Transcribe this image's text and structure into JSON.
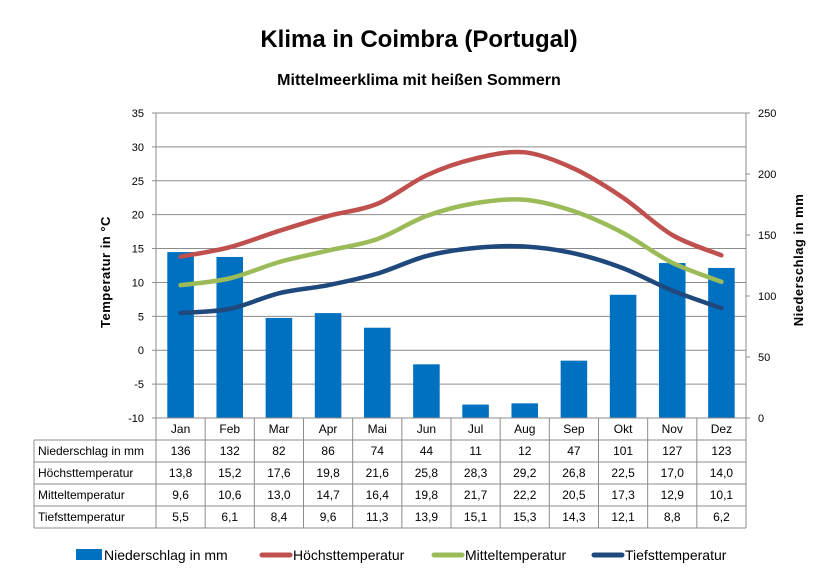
{
  "title": "Klima in Coimbra (Portugal)",
  "subtitle": "Mittelmeerklima mit heißen Sommern",
  "chart_data": {
    "type": "bar+line",
    "categories": [
      "Jan",
      "Feb",
      "Mar",
      "Apr",
      "Mai",
      "Jun",
      "Jul",
      "Aug",
      "Sep",
      "Okt",
      "Nov",
      "Dez"
    ],
    "ylabel": "Temperatur  in  °C",
    "y2label": "Niederschlag  in  mm",
    "ylim": [
      -10,
      35
    ],
    "yticks": [
      "35",
      "30",
      "25",
      "20",
      "15",
      "10",
      "5",
      "0",
      "-5",
      "-10"
    ],
    "y2lim": [
      0,
      250
    ],
    "y2ticks": [
      "250",
      "200",
      "150",
      "100",
      "50",
      "0"
    ],
    "grid": true,
    "series": [
      {
        "name": "Niederschlag in mm",
        "type": "bar",
        "axis": "right",
        "color": "#0070C0",
        "values": [
          136,
          132,
          82,
          86,
          74,
          44,
          11,
          12,
          47,
          101,
          127,
          123
        ],
        "labels": [
          "136",
          "132",
          "82",
          "86",
          "74",
          "44",
          "11",
          "12",
          "47",
          "101",
          "127",
          "123"
        ]
      },
      {
        "name": "Höchsttemperatur",
        "type": "line",
        "axis": "left",
        "color": "#C0504D",
        "values": [
          13.8,
          15.2,
          17.6,
          19.8,
          21.6,
          25.8,
          28.3,
          29.2,
          26.8,
          22.5,
          17.0,
          14.0
        ],
        "labels": [
          "13,8",
          "15,2",
          "17,6",
          "19,8",
          "21,6",
          "25,8",
          "28,3",
          "29,2",
          "26,8",
          "22,5",
          "17,0",
          "14,0"
        ]
      },
      {
        "name": "Mitteltemperatur",
        "type": "line",
        "axis": "left",
        "color": "#9BBB59",
        "values": [
          9.6,
          10.6,
          13.0,
          14.7,
          16.4,
          19.8,
          21.7,
          22.2,
          20.5,
          17.3,
          12.9,
          10.1
        ],
        "labels": [
          "9,6",
          "10,6",
          "13,0",
          "14,7",
          "16,4",
          "19,8",
          "21,7",
          "22,2",
          "20,5",
          "17,3",
          "12,9",
          "10,1"
        ]
      },
      {
        "name": "Tiefsttemperatur",
        "type": "line",
        "axis": "left",
        "color": "#1F497D",
        "values": [
          5.5,
          6.1,
          8.4,
          9.6,
          11.3,
          13.9,
          15.1,
          15.3,
          14.3,
          12.1,
          8.8,
          6.2
        ],
        "labels": [
          "5,5",
          "6,1",
          "8,4",
          "9,6",
          "11,3",
          "13,9",
          "15,1",
          "15,3",
          "14,3",
          "12,1",
          "8,8",
          "6,2"
        ]
      }
    ]
  }
}
